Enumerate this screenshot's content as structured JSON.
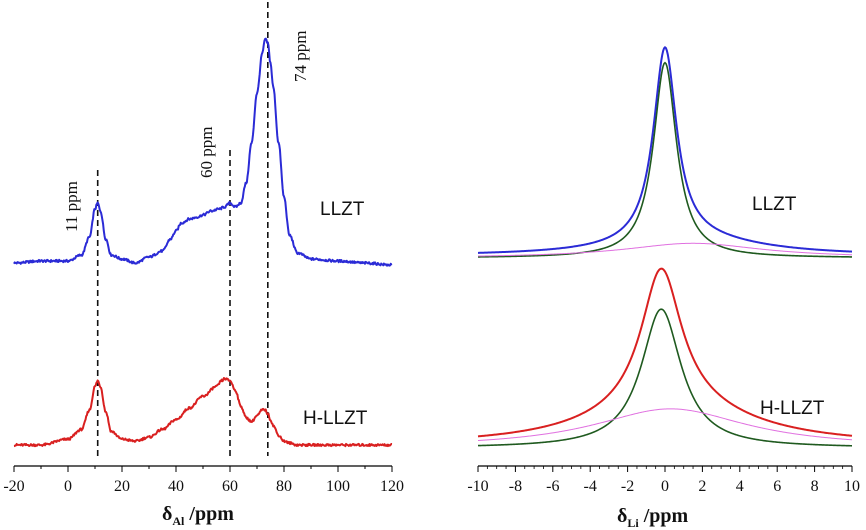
{
  "chart_data": [
    {
      "type": "line",
      "panel": "left",
      "xlabel_symbol": "δ",
      "xlabel_subscript": "Al",
      "xlabel_unit": " /ppm",
      "xlim": [
        -20,
        120
      ],
      "xticks": [
        "-20",
        "0",
        "20",
        "40",
        "60",
        "80",
        "100",
        "120"
      ],
      "grid": false,
      "series": [
        {
          "name": "LLZT",
          "color": "#2b2bd6",
          "x": [
            -20,
            -10,
            0,
            5,
            8,
            10,
            11,
            12,
            14,
            16,
            20,
            25,
            30,
            35,
            38,
            40,
            42,
            45,
            48,
            50,
            53,
            56,
            58,
            60,
            62,
            64,
            66,
            68,
            70,
            72,
            73,
            74,
            75,
            76,
            78,
            80,
            82,
            85,
            90,
            100,
            110,
            120
          ],
          "y": [
            0.0,
            0.01,
            0.01,
            0.04,
            0.13,
            0.27,
            0.3,
            0.26,
            0.12,
            0.04,
            0.02,
            0.0,
            0.03,
            0.06,
            0.12,
            0.16,
            0.2,
            0.22,
            0.23,
            0.24,
            0.26,
            0.27,
            0.28,
            0.3,
            0.28,
            0.3,
            0.4,
            0.6,
            0.85,
            1.05,
            1.12,
            1.1,
            1.0,
            0.88,
            0.6,
            0.33,
            0.14,
            0.05,
            0.02,
            0.01,
            0.0,
            -0.01
          ]
        },
        {
          "name": "H-LLZT",
          "color": "#d92020",
          "x": [
            -20,
            -10,
            0,
            5,
            8,
            10,
            11,
            12,
            14,
            16,
            20,
            25,
            30,
            35,
            40,
            45,
            50,
            55,
            57,
            58,
            60,
            62,
            64,
            66,
            68,
            70,
            72,
            73,
            74,
            75,
            76,
            78,
            80,
            82,
            85,
            90,
            100,
            110,
            120
          ],
          "y": [
            0.0,
            0.0,
            0.03,
            0.08,
            0.18,
            0.3,
            0.33,
            0.3,
            0.17,
            0.07,
            0.03,
            0.02,
            0.04,
            0.08,
            0.13,
            0.19,
            0.25,
            0.3,
            0.33,
            0.34,
            0.33,
            0.28,
            0.2,
            0.14,
            0.12,
            0.15,
            0.18,
            0.18,
            0.16,
            0.13,
            0.1,
            0.05,
            0.02,
            0.01,
            0.0,
            0.0,
            0.0,
            0.0,
            0.0
          ]
        }
      ],
      "reference_lines": [
        11,
        60,
        74
      ],
      "annotations": [
        {
          "text": "11 ppm",
          "x": 11
        },
        {
          "text": "60 ppm",
          "x": 60
        },
        {
          "text": "74 ppm",
          "x": 74
        }
      ],
      "labels": [
        "LLZT",
        "H-LLZT"
      ]
    },
    {
      "type": "line",
      "panel": "right",
      "xlabel_symbol": "δ",
      "xlabel_subscript": "Li",
      "xlabel_unit": " /ppm",
      "xlim": [
        -10,
        10
      ],
      "xticks": [
        "-10",
        "-8",
        "-6",
        "-4",
        "-2",
        "0",
        "2",
        "4",
        "6",
        "8",
        "10"
      ],
      "grid": false,
      "series": [
        {
          "name": "LLZT",
          "role": "measured",
          "color": "#2b2bd6",
          "center": 0.0,
          "width": 0.85,
          "amplitude": 1.0
        },
        {
          "name": "LLZT",
          "role": "fit component (narrow)",
          "color": "#1f5a1f",
          "center": 0.0,
          "width": 0.75,
          "amplitude": 0.93
        },
        {
          "name": "LLZT",
          "role": "fit component (broad)",
          "color": "#e070e0",
          "center": 1.5,
          "width": 4.5,
          "amplitude": 0.07
        },
        {
          "name": "H-LLZT",
          "role": "measured",
          "color": "#d92020",
          "center": -0.3,
          "width": 1.7,
          "amplitude": 1.0
        },
        {
          "name": "H-LLZT",
          "role": "fit component (narrow)",
          "color": "#1f5a1f",
          "center": -0.2,
          "width": 1.3,
          "amplitude": 0.78
        },
        {
          "name": "H-LLZT",
          "role": "fit component (broad)",
          "color": "#e070e0",
          "center": 0.3,
          "width": 5.0,
          "amplitude": 0.22
        }
      ],
      "labels": [
        "LLZT",
        "H-LLZT"
      ]
    }
  ]
}
